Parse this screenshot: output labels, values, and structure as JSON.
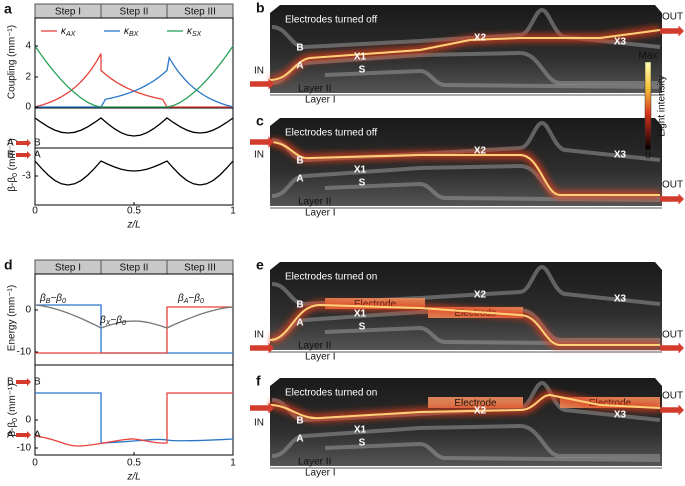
{
  "panel_a": {
    "label": "a",
    "steps": [
      "Step I",
      "Step II",
      "Step III"
    ],
    "legend": [
      [
        "κ",
        "AX"
      ],
      [
        "κ",
        "BX"
      ],
      [
        "κ",
        "SX"
      ]
    ],
    "ylabel_top": "Coupling (mm⁻¹)",
    "yticks_top": [
      "4",
      "2",
      "0"
    ],
    "ylabel_bottom": [
      "β-β",
      "0",
      " (mm⁻¹)"
    ],
    "ytick_bottom": "-3",
    "transitions": [
      "A",
      "B",
      "B",
      "A"
    ],
    "xticks": [
      "0",
      "0.5",
      "1"
    ],
    "xlabel": "z/L"
  },
  "panel_d": {
    "label": "d",
    "steps": [
      "Step I",
      "Step II",
      "Step III"
    ],
    "annotations": [
      [
        "β",
        "B",
        "−β",
        "0"
      ],
      [
        "β",
        "X",
        "−β",
        "0"
      ],
      [
        "β",
        "A",
        "−β",
        "0"
      ]
    ],
    "ylabel_top": "Energy (mm⁻¹)",
    "yticks_top": [
      "0",
      "-10"
    ],
    "ylabel_bottom": [
      "β-β",
      "0",
      " (mm⁻¹)"
    ],
    "yticks_bottom": [
      "0",
      "-10"
    ],
    "transitions": [
      "B",
      "B",
      "A",
      "A"
    ],
    "xticks": [
      "0",
      "0.5",
      "1"
    ],
    "xlabel": "z/L"
  },
  "panels": [
    {
      "label": "b",
      "title": "Electrodes turned off",
      "in": "IN",
      "out": "OUT",
      "waveguides": [
        "B",
        "A",
        "X1",
        "S",
        "X2",
        "X3"
      ],
      "layers": [
        "Layer II",
        "Layer I"
      ]
    },
    {
      "label": "c",
      "title": "Electrodes turned off",
      "in": "IN",
      "out": "OUT",
      "waveguides": [
        "B",
        "A",
        "X1",
        "S",
        "X2",
        "X3"
      ],
      "layers": [
        "Layer II",
        "Layer I"
      ]
    },
    {
      "label": "e",
      "title": "Electrodes turned on",
      "in": "IN",
      "out": "OUT",
      "waveguides": [
        "B",
        "A",
        "X1",
        "S",
        "X2",
        "X3"
      ],
      "layers": [
        "Layer II",
        "Layer I"
      ],
      "electrodes": [
        "Electrode",
        "Electrode"
      ]
    },
    {
      "label": "f",
      "title": "Electrodes turned on",
      "in": "IN",
      "out": "OUT",
      "waveguides": [
        "B",
        "A",
        "X1",
        "S",
        "X2",
        "X3"
      ],
      "layers": [
        "Layer II",
        "Layer I"
      ],
      "electrodes": [
        "Electrode",
        "Electrode"
      ]
    }
  ],
  "colorbar": {
    "max": "Max",
    "min": "0",
    "label": "Light intensity"
  }
}
